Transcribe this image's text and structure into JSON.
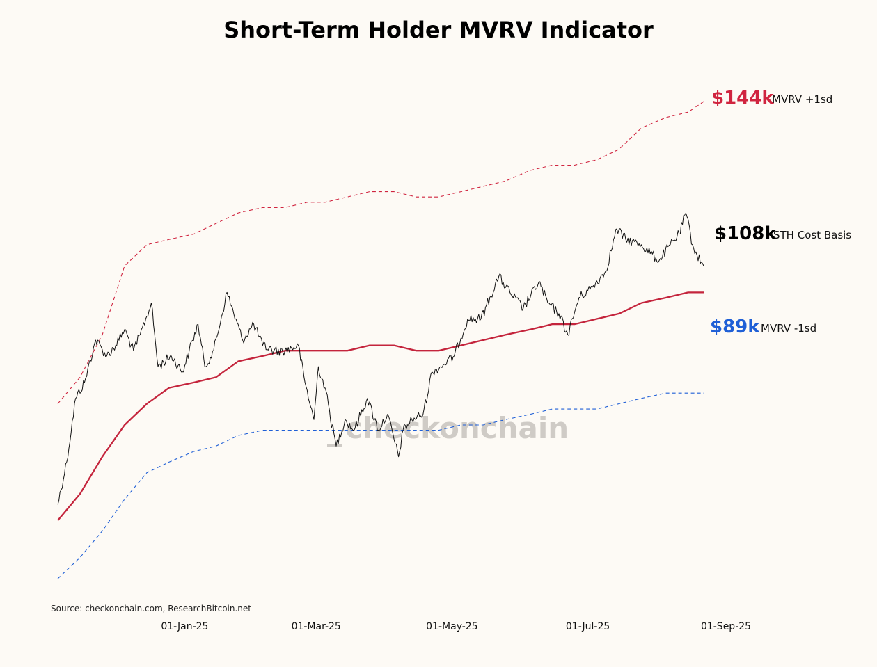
{
  "title": "Short-Term Holder MVRV Indicator",
  "source": "Source: checkonchain.com, ResearchBitcoin.net",
  "watermark": {
    "prefix": "_",
    "text": "checkonchain"
  },
  "colors": {
    "upper": "#d0243f",
    "cost": "#c4243c",
    "lower": "#1f5fd6",
    "price": "#111111",
    "watermark_prefix": "#f3d27a"
  },
  "labels": {
    "upper": {
      "value": "$144k",
      "text": "MVRV +1sd"
    },
    "cost": {
      "value": "$108k",
      "text": "STH Cost Basis"
    },
    "lower": {
      "value": "$89k",
      "text": "MVRV -1sd"
    }
  },
  "chart_data": {
    "type": "line",
    "title": "Short-Term Holder MVRV Indicator",
    "x_ticks": [
      "01-Jan-25",
      "01-Mar-25",
      "01-May-25",
      "01-Jul-25",
      "01-Sep-25"
    ],
    "x_tick_dates": [
      "2025-01-01",
      "2025-03-01",
      "2025-05-01",
      "2025-07-01",
      "2025-09-01"
    ],
    "xlim": [
      "2024-11-05",
      "2025-09-05"
    ],
    "y_axis_shown": false,
    "grid": false,
    "series": [
      {
        "name": "MVRV +1sd",
        "style": "dashed",
        "points": [
          [
            "2024-11-05",
            87
          ],
          [
            "2024-11-15",
            92
          ],
          [
            "2024-11-25",
            100
          ],
          [
            "2024-12-05",
            113
          ],
          [
            "2024-12-15",
            117
          ],
          [
            "2024-12-25",
            118
          ],
          [
            "2025-01-05",
            119
          ],
          [
            "2025-01-15",
            121
          ],
          [
            "2025-01-25",
            123
          ],
          [
            "2025-02-05",
            124
          ],
          [
            "2025-02-15",
            124
          ],
          [
            "2025-02-25",
            125
          ],
          [
            "2025-03-05",
            125
          ],
          [
            "2025-03-15",
            126
          ],
          [
            "2025-03-25",
            127
          ],
          [
            "2025-04-05",
            127
          ],
          [
            "2025-04-15",
            126
          ],
          [
            "2025-04-25",
            126
          ],
          [
            "2025-05-05",
            127
          ],
          [
            "2025-05-15",
            128
          ],
          [
            "2025-05-25",
            129
          ],
          [
            "2025-06-05",
            131
          ],
          [
            "2025-06-15",
            132
          ],
          [
            "2025-06-25",
            132
          ],
          [
            "2025-07-05",
            133
          ],
          [
            "2025-07-15",
            135
          ],
          [
            "2025-07-25",
            139
          ],
          [
            "2025-08-05",
            141
          ],
          [
            "2025-08-15",
            142
          ],
          [
            "2025-08-22",
            144
          ]
        ]
      },
      {
        "name": "STH Cost Basis",
        "style": "solid",
        "points": [
          [
            "2024-11-05",
            65
          ],
          [
            "2024-11-15",
            70
          ],
          [
            "2024-11-25",
            77
          ],
          [
            "2024-12-05",
            83
          ],
          [
            "2024-12-15",
            87
          ],
          [
            "2024-12-25",
            90
          ],
          [
            "2025-01-05",
            91
          ],
          [
            "2025-01-15",
            92
          ],
          [
            "2025-01-25",
            95
          ],
          [
            "2025-02-05",
            96
          ],
          [
            "2025-02-15",
            97
          ],
          [
            "2025-02-25",
            97
          ],
          [
            "2025-03-05",
            97
          ],
          [
            "2025-03-15",
            97
          ],
          [
            "2025-03-25",
            98
          ],
          [
            "2025-04-05",
            98
          ],
          [
            "2025-04-15",
            97
          ],
          [
            "2025-04-25",
            97
          ],
          [
            "2025-05-05",
            98
          ],
          [
            "2025-05-15",
            99
          ],
          [
            "2025-05-25",
            100
          ],
          [
            "2025-06-05",
            101
          ],
          [
            "2025-06-15",
            102
          ],
          [
            "2025-06-25",
            102
          ],
          [
            "2025-07-05",
            103
          ],
          [
            "2025-07-15",
            104
          ],
          [
            "2025-07-25",
            106
          ],
          [
            "2025-08-05",
            107
          ],
          [
            "2025-08-15",
            108
          ],
          [
            "2025-08-22",
            108
          ]
        ]
      },
      {
        "name": "MVRV -1sd",
        "style": "dashed",
        "points": [
          [
            "2024-11-05",
            54
          ],
          [
            "2024-11-15",
            58
          ],
          [
            "2024-11-25",
            63
          ],
          [
            "2024-12-05",
            69
          ],
          [
            "2024-12-15",
            74
          ],
          [
            "2024-12-25",
            76
          ],
          [
            "2025-01-05",
            78
          ],
          [
            "2025-01-15",
            79
          ],
          [
            "2025-01-25",
            81
          ],
          [
            "2025-02-05",
            82
          ],
          [
            "2025-02-15",
            82
          ],
          [
            "2025-02-25",
            82
          ],
          [
            "2025-03-05",
            82
          ],
          [
            "2025-03-15",
            82
          ],
          [
            "2025-03-25",
            82
          ],
          [
            "2025-04-05",
            82
          ],
          [
            "2025-04-15",
            82
          ],
          [
            "2025-04-25",
            82
          ],
          [
            "2025-05-05",
            83
          ],
          [
            "2025-05-15",
            83
          ],
          [
            "2025-05-25",
            84
          ],
          [
            "2025-06-05",
            85
          ],
          [
            "2025-06-15",
            86
          ],
          [
            "2025-06-25",
            86
          ],
          [
            "2025-07-05",
            86
          ],
          [
            "2025-07-15",
            87
          ],
          [
            "2025-07-25",
            88
          ],
          [
            "2025-08-05",
            89
          ],
          [
            "2025-08-15",
            89
          ],
          [
            "2025-08-22",
            89
          ]
        ]
      },
      {
        "name": "Price",
        "style": "solid",
        "points": [
          [
            "2024-11-05",
            68
          ],
          [
            "2024-11-09",
            76
          ],
          [
            "2024-11-13",
            88
          ],
          [
            "2024-11-17",
            91
          ],
          [
            "2024-11-22",
            99
          ],
          [
            "2024-11-27",
            96
          ],
          [
            "2024-12-01",
            98
          ],
          [
            "2024-12-05",
            101
          ],
          [
            "2024-12-09",
            97
          ],
          [
            "2024-12-12",
            100
          ],
          [
            "2024-12-17",
            106
          ],
          [
            "2024-12-20",
            94
          ],
          [
            "2024-12-26",
            96
          ],
          [
            "2024-12-31",
            93
          ],
          [
            "2025-01-03",
            97
          ],
          [
            "2025-01-07",
            102
          ],
          [
            "2025-01-10",
            94
          ],
          [
            "2025-01-14",
            97
          ],
          [
            "2025-01-20",
            108
          ],
          [
            "2025-01-23",
            104
          ],
          [
            "2025-01-27",
            99
          ],
          [
            "2025-02-01",
            102
          ],
          [
            "2025-02-05",
            98
          ],
          [
            "2025-02-10",
            97
          ],
          [
            "2025-02-15",
            97
          ],
          [
            "2025-02-21",
            98
          ],
          [
            "2025-02-24",
            91
          ],
          [
            "2025-02-28",
            84
          ],
          [
            "2025-03-02",
            94
          ],
          [
            "2025-03-05",
            90
          ],
          [
            "2025-03-10",
            79
          ],
          [
            "2025-03-14",
            84
          ],
          [
            "2025-03-18",
            82
          ],
          [
            "2025-03-24",
            88
          ],
          [
            "2025-03-29",
            82
          ],
          [
            "2025-04-02",
            85
          ],
          [
            "2025-04-07",
            77
          ],
          [
            "2025-04-09",
            82
          ],
          [
            "2025-04-13",
            84
          ],
          [
            "2025-04-18",
            85
          ],
          [
            "2025-04-22",
            93
          ],
          [
            "2025-04-26",
            94
          ],
          [
            "2025-05-02",
            96
          ],
          [
            "2025-05-08",
            103
          ],
          [
            "2025-05-14",
            103
          ],
          [
            "2025-05-22",
            111
          ],
          [
            "2025-05-27",
            108
          ],
          [
            "2025-06-02",
            105
          ],
          [
            "2025-06-09",
            110
          ],
          [
            "2025-06-13",
            106
          ],
          [
            "2025-06-18",
            104
          ],
          [
            "2025-06-22",
            100
          ],
          [
            "2025-06-27",
            107
          ],
          [
            "2025-07-03",
            109
          ],
          [
            "2025-07-09",
            112
          ],
          [
            "2025-07-14",
            120
          ],
          [
            "2025-07-18",
            118
          ],
          [
            "2025-07-25",
            117
          ],
          [
            "2025-08-02",
            114
          ],
          [
            "2025-08-07",
            117
          ],
          [
            "2025-08-11",
            119
          ],
          [
            "2025-08-14",
            123
          ],
          [
            "2025-08-17",
            117
          ],
          [
            "2025-08-19",
            115
          ],
          [
            "2025-08-22",
            113
          ]
        ]
      }
    ]
  }
}
